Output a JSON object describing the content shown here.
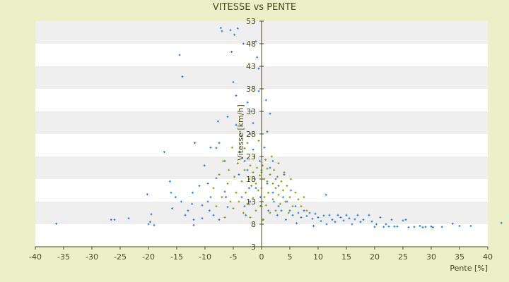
{
  "chart_data": {
    "type": "scatter",
    "title": "VITESSE vs PENTE",
    "xlabel": "Pente [%]",
    "ylabel": "Vitesse [km/h]",
    "xlim": [
      -40,
      40
    ],
    "ylim": [
      3,
      53
    ],
    "x_ticks": [
      "-40",
      "-35",
      "-30",
      "-25",
      "-20",
      "-15",
      "-10",
      "-5",
      "0",
      "5",
      "10",
      "15",
      "20",
      "25",
      "30",
      "35",
      "40"
    ],
    "y_ticks": [
      "3",
      "8",
      "13",
      "18",
      "23",
      "28",
      "33",
      "38",
      "43",
      "48",
      "53"
    ],
    "grid": "horizontal bands",
    "colors": {
      "background": "#ecf0c8",
      "band_light": "#ffffff",
      "band_dark": "#efefef",
      "axis": "#4a4a1a",
      "series_blue": "#2b7fd8",
      "series_olive": "#8a9a10"
    },
    "series": [
      {
        "color": "#2b7fd8",
        "points": [
          [
            -36.3,
            8.1
          ],
          [
            -26.6,
            9
          ],
          [
            -26,
            9
          ],
          [
            -23.5,
            9.3
          ],
          [
            -20,
            8
          ],
          [
            -19.7,
            8.5
          ],
          [
            -19.5,
            10.2
          ],
          [
            -20.2,
            14.6
          ],
          [
            -19,
            7.8
          ],
          [
            -17.2,
            24
          ],
          [
            -16.2,
            17.5
          ],
          [
            -16,
            15
          ],
          [
            -15.8,
            11.5
          ],
          [
            -15.2,
            14
          ],
          [
            -14.5,
            45.5
          ],
          [
            -14.2,
            13
          ],
          [
            -14,
            40.7
          ],
          [
            -13.5,
            10
          ],
          [
            -13,
            11
          ],
          [
            -12.3,
            12.5
          ],
          [
            -12,
            9
          ],
          [
            -12,
            7.8
          ],
          [
            -12.2,
            15
          ],
          [
            -11.8,
            26
          ],
          [
            -11,
            16.5
          ],
          [
            -10.5,
            9.3
          ],
          [
            -10.5,
            12.2
          ],
          [
            -10.1,
            21
          ],
          [
            -9.5,
            17
          ],
          [
            -9.5,
            13
          ],
          [
            -9.2,
            11
          ],
          [
            -9,
            25
          ],
          [
            -9,
            14
          ],
          [
            -8.5,
            10
          ],
          [
            -8,
            18.2
          ],
          [
            -8,
            24.9
          ],
          [
            -7.7,
            30.8
          ],
          [
            -7.5,
            9
          ],
          [
            -7.5,
            26
          ],
          [
            -7.2,
            51.5
          ],
          [
            -7,
            50.8
          ],
          [
            -6.5,
            22
          ],
          [
            -6.5,
            15.2
          ],
          [
            -6.3,
            14
          ],
          [
            -6,
            11.8
          ],
          [
            -6,
            31.8
          ],
          [
            -5.5,
            51
          ],
          [
            -5.3,
            46.2
          ],
          [
            -5,
            39.5
          ],
          [
            -4.8,
            50
          ],
          [
            -4.5,
            36.5
          ],
          [
            -4.5,
            30
          ],
          [
            -4.2,
            51.4
          ],
          [
            -4,
            19
          ],
          [
            -3.8,
            24
          ],
          [
            -3.5,
            27.5
          ],
          [
            -3.5,
            14
          ],
          [
            -3.2,
            48
          ],
          [
            -3,
            22
          ],
          [
            -3,
            12
          ],
          [
            -2.8,
            10
          ],
          [
            -2.5,
            35
          ],
          [
            -2.5,
            20
          ],
          [
            -2.2,
            16
          ],
          [
            -2,
            28
          ],
          [
            -2,
            13
          ],
          [
            -1.8,
            33
          ],
          [
            -1.5,
            24.5
          ],
          [
            -1.5,
            30.4
          ],
          [
            -1.2,
            18
          ],
          [
            -1,
            48.5
          ],
          [
            -1,
            16
          ],
          [
            -0.8,
            45
          ],
          [
            -0.5,
            42.5
          ],
          [
            -0.5,
            37.5
          ],
          [
            -0.3,
            22
          ],
          [
            -0.2,
            14
          ],
          [
            0,
            20
          ],
          [
            0,
            12
          ],
          [
            0.2,
            9
          ],
          [
            0.5,
            25
          ],
          [
            0.8,
            35.5
          ],
          [
            1,
            28.5
          ],
          [
            1,
            17
          ],
          [
            1.2,
            11
          ],
          [
            1.5,
            32.5
          ],
          [
            1.5,
            20.5
          ],
          [
            2,
            22
          ],
          [
            2,
            15
          ],
          [
            2.2,
            13
          ],
          [
            2.5,
            18
          ],
          [
            2.8,
            10
          ],
          [
            3,
            12
          ],
          [
            3,
            16.5
          ],
          [
            3.5,
            11
          ],
          [
            3.8,
            14
          ],
          [
            4,
            19
          ],
          [
            4.3,
            9
          ],
          [
            4.5,
            13
          ],
          [
            5,
            11
          ],
          [
            5.2,
            15.5
          ],
          [
            5.5,
            10
          ],
          [
            6,
            12
          ],
          [
            6.2,
            8.2
          ],
          [
            6.5,
            10.5
          ],
          [
            7,
            9.5
          ],
          [
            7.5,
            11
          ],
          [
            8,
            9.8
          ],
          [
            8.5,
            10.5
          ],
          [
            9,
            9.2
          ],
          [
            9.2,
            7.6
          ],
          [
            9.5,
            10.3
          ],
          [
            10,
            9.5
          ],
          [
            10.5,
            8.7
          ],
          [
            11,
            9.9
          ],
          [
            11.4,
            14.5
          ],
          [
            11.5,
            8
          ],
          [
            12,
            10
          ],
          [
            12.5,
            9
          ],
          [
            13,
            8.5
          ],
          [
            13.5,
            10
          ],
          [
            14,
            9.5
          ],
          [
            14.5,
            8.8
          ],
          [
            15,
            10
          ],
          [
            15.5,
            9.3
          ],
          [
            16,
            8
          ],
          [
            16.5,
            9.1
          ],
          [
            17,
            10
          ],
          [
            17.5,
            8.5
          ],
          [
            18,
            9
          ],
          [
            19,
            10
          ],
          [
            19.5,
            8.6
          ],
          [
            20,
            7.4
          ],
          [
            20.3,
            8
          ],
          [
            21,
            9.5
          ],
          [
            21.6,
            7.4
          ],
          [
            22,
            8
          ],
          [
            22.5,
            7.5
          ],
          [
            23,
            9
          ],
          [
            23.5,
            7.5
          ],
          [
            24,
            7.5
          ],
          [
            25,
            8.8
          ],
          [
            25.5,
            9
          ],
          [
            26,
            7.3
          ],
          [
            27,
            7.4
          ],
          [
            28,
            7.6
          ],
          [
            28.5,
            7.3
          ],
          [
            29,
            7.4
          ],
          [
            30,
            7.5
          ],
          [
            30.3,
            7.3
          ],
          [
            31.9,
            7.4
          ],
          [
            33.8,
            8.1
          ],
          [
            35,
            7.6
          ],
          [
            37,
            7.6
          ],
          [
            42.4,
            8.3
          ]
        ]
      },
      {
        "color": "#8a9a10",
        "points": [
          [
            -8.5,
            16
          ],
          [
            -8,
            12
          ],
          [
            -7.5,
            19
          ],
          [
            -7,
            14
          ],
          [
            -6.8,
            22
          ],
          [
            -6.5,
            9.5
          ],
          [
            -6,
            17
          ],
          [
            -5.8,
            20
          ],
          [
            -5.5,
            13
          ],
          [
            -5.2,
            25
          ],
          [
            -5,
            11.5
          ],
          [
            -4.8,
            18.5
          ],
          [
            -4.5,
            15
          ],
          [
            -4.2,
            21.5
          ],
          [
            -4,
            13
          ],
          [
            -3.8,
            28.5
          ],
          [
            -3.5,
            17.5
          ],
          [
            -3.2,
            10.5
          ],
          [
            -3,
            20
          ],
          [
            -3,
            24.8
          ],
          [
            -2.8,
            15
          ],
          [
            -2.5,
            12.5
          ],
          [
            -2.5,
            26
          ],
          [
            -2.2,
            18
          ],
          [
            -2,
            21
          ],
          [
            -2,
            9.5
          ],
          [
            -1.8,
            16.5
          ],
          [
            -1.5,
            19.5
          ],
          [
            -1.5,
            13.8
          ],
          [
            -1.3,
            23
          ],
          [
            -1,
            17
          ],
          [
            -1,
            11
          ],
          [
            -0.8,
            20.5
          ],
          [
            -0.6,
            15.5
          ],
          [
            -0.5,
            26.5
          ],
          [
            -0.3,
            18.8
          ],
          [
            -0.2,
            12
          ],
          [
            0,
            19.5
          ],
          [
            0,
            16
          ],
          [
            0.2,
            21
          ],
          [
            0.3,
            9
          ],
          [
            0.5,
            18
          ],
          [
            0.5,
            14
          ],
          [
            0.7,
            22.3
          ],
          [
            0.8,
            12.2
          ],
          [
            1,
            17.5
          ],
          [
            1,
            20.3
          ],
          [
            1.2,
            15
          ],
          [
            1.5,
            19
          ],
          [
            1.5,
            10.5
          ],
          [
            1.8,
            23
          ],
          [
            2,
            17
          ],
          [
            2,
            13.5
          ],
          [
            2.2,
            20
          ],
          [
            2.5,
            16
          ],
          [
            2.5,
            11
          ],
          [
            2.8,
            18.5
          ],
          [
            3,
            14.5
          ],
          [
            3,
            21.5
          ],
          [
            3.3,
            12.5
          ],
          [
            3.5,
            17.5
          ],
          [
            3.8,
            15.5
          ],
          [
            4,
            19.5
          ],
          [
            4.2,
            13
          ],
          [
            4.5,
            16.5
          ],
          [
            4.8,
            10.5
          ],
          [
            5,
            14
          ],
          [
            5.2,
            18
          ],
          [
            5.5,
            12
          ],
          [
            6,
            15
          ],
          [
            6.5,
            13.5
          ],
          [
            7,
            12
          ],
          [
            7.5,
            14
          ],
          [
            8,
            11
          ]
        ]
      }
    ]
  }
}
